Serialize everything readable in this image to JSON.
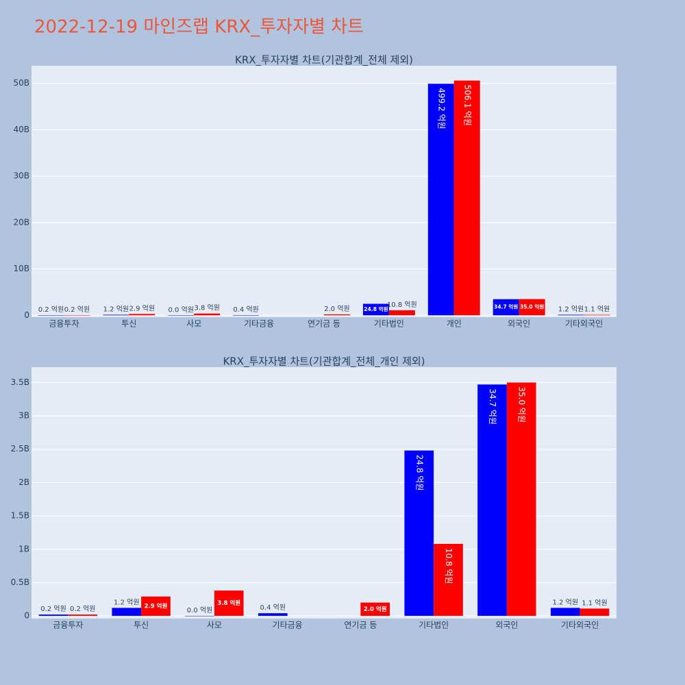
{
  "title": "2022-12-19 마인즈랩 KRX_투자자별 차트",
  "chart_data": [
    {
      "type": "bar",
      "title": "KRX_투자자별 차트(기관합계_전체 제외)",
      "categories": [
        "금융투자",
        "투신",
        "사모",
        "기타금융",
        "연기금 등",
        "기타법인",
        "개인",
        "외국인",
        "기타외국인"
      ],
      "series": [
        {
          "color": "#0000ff",
          "values": [
            20000000,
            120000000,
            0,
            40000000,
            null,
            2480000000,
            49920000000,
            3470000000,
            120000000
          ],
          "value_labels": [
            "0.2 억원",
            "1.2 억원",
            "0.0 억원",
            "0.4 억원",
            null,
            "24.8 억원",
            "499.2 억원",
            "34.7 억원",
            "1.2 억원"
          ]
        },
        {
          "color": "#ff0000",
          "values": [
            20000000,
            290000000,
            380000000,
            null,
            200000000,
            1080000000,
            50610000000,
            3500000000,
            110000000
          ],
          "value_labels": [
            "0.2 억원",
            "2.9 억원",
            "3.8 억원",
            null,
            "2.0 억원",
            "10.8 억원",
            "506.1 억원",
            "35.0 억원",
            "1.1 억원"
          ]
        }
      ],
      "ylim": [
        -400000000,
        53800000000
      ],
      "yticks": [
        0,
        {
          "value": 10000000000,
          "label": "10B"
        },
        {
          "value": 20000000000,
          "label": "20B"
        },
        {
          "value": 30000000000,
          "label": "30B"
        },
        {
          "value": 40000000000,
          "label": "40B"
        },
        {
          "value": 50000000000,
          "label": "50B"
        }
      ],
      "grid": true
    },
    {
      "type": "bar",
      "title": "KRX_투자자별 차트(기관합계_전체_개인 제외)",
      "categories": [
        "금융투자",
        "투신",
        "사모",
        "기타금융",
        "연기금 등",
        "기타법인",
        "외국인",
        "기타외국인"
      ],
      "series": [
        {
          "color": "#0000ff",
          "values": [
            20000000,
            120000000,
            0,
            40000000,
            null,
            2480000000,
            3470000000,
            120000000
          ],
          "value_labels": [
            "0.2 억원",
            "1.2 억원",
            "0.0 억원",
            "0.4 억원",
            null,
            "24.8 억원",
            "34.7 억원",
            "1.2 억원"
          ]
        },
        {
          "color": "#ff0000",
          "values": [
            20000000,
            290000000,
            380000000,
            null,
            200000000,
            1080000000,
            3500000000,
            110000000
          ],
          "value_labels": [
            "0.2 억원",
            "2.9 억원",
            "3.8 억원",
            null,
            "2.0 억원",
            "10.8 억원",
            "35.0 억원",
            "1.1 억원"
          ]
        }
      ],
      "ylim": [
        -40000000,
        3730000000
      ],
      "yticks": [
        0,
        {
          "value": 500000000,
          "label": "0.5B"
        },
        {
          "value": 1000000000,
          "label": "1B"
        },
        {
          "value": 1500000000,
          "label": "1.5B"
        },
        {
          "value": 2000000000,
          "label": "2B"
        },
        {
          "value": 2500000000,
          "label": "2.5B"
        },
        {
          "value": 3000000000,
          "label": "3B"
        },
        {
          "value": 3500000000,
          "label": "3.5B"
        }
      ],
      "grid": true
    }
  ]
}
